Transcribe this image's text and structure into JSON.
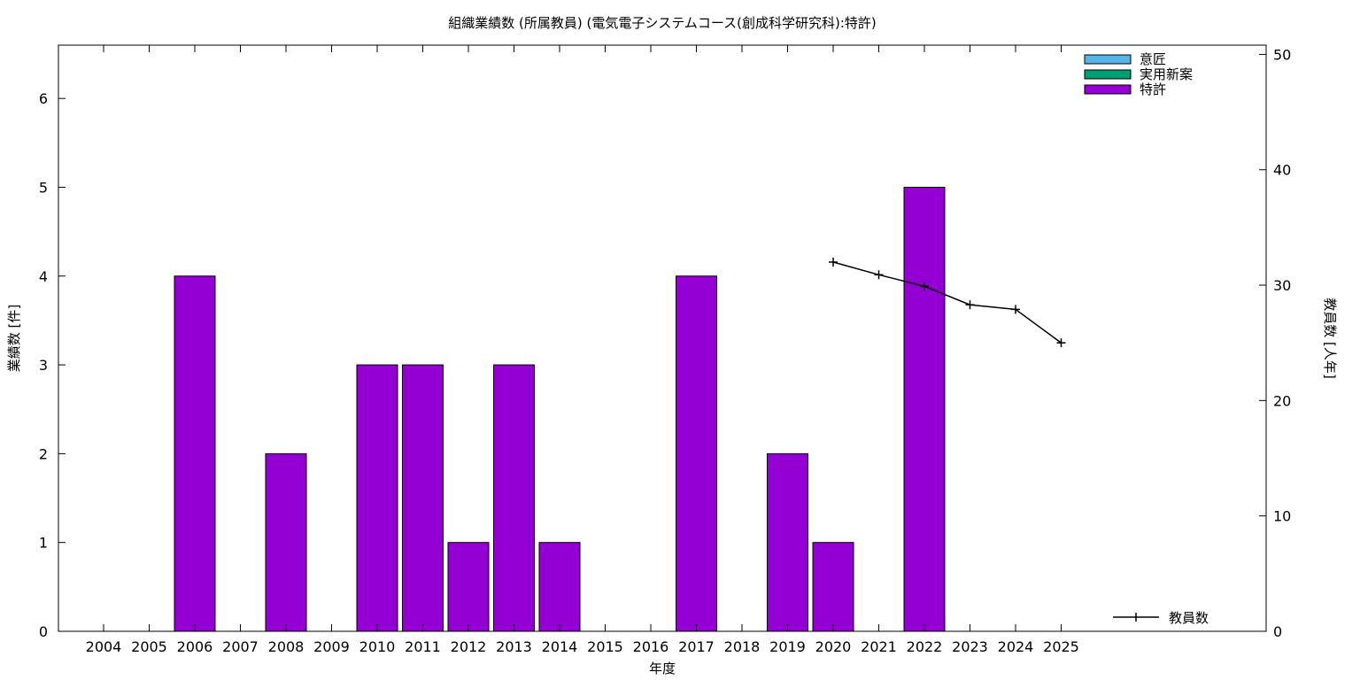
{
  "chart_data": {
    "type": "bar",
    "title": "組織業績数 (所属教員) (電気電子システムコース(創成科学研究科):特許)",
    "xlabel": "年度",
    "ylabel": "業績数 [件]",
    "y2label": "教員数 [人年]",
    "categories": [
      "2004",
      "2005",
      "2006",
      "2007",
      "2008",
      "2009",
      "2010",
      "2011",
      "2012",
      "2013",
      "2014",
      "2015",
      "2016",
      "2017",
      "2018",
      "2019",
      "2020",
      "2021",
      "2022",
      "2023",
      "2024",
      "2025"
    ],
    "ylim": [
      0,
      6.6
    ],
    "yticks": [
      0,
      1,
      2,
      3,
      4,
      5,
      6
    ],
    "y2lim": [
      0,
      50.8
    ],
    "y2ticks": [
      0,
      10,
      20,
      30,
      40,
      50
    ],
    "series": [
      {
        "name": "意匠",
        "color": "#56b4e9",
        "values": [
          0,
          0,
          0,
          0,
          0,
          0,
          0,
          0,
          0,
          0,
          0,
          0,
          0,
          0,
          0,
          0,
          0,
          0,
          0,
          0,
          0,
          0
        ]
      },
      {
        "name": "実用新案",
        "color": "#009e73",
        "values": [
          0,
          0,
          0,
          0,
          0,
          0,
          0,
          0,
          0,
          0,
          0,
          0,
          0,
          0,
          0,
          0,
          0,
          0,
          0,
          0,
          0,
          0
        ]
      },
      {
        "name": "特許",
        "color": "#9400d3",
        "values": [
          0,
          0,
          4,
          0,
          2,
          0,
          3,
          3,
          1,
          3,
          1,
          0,
          0,
          4,
          0,
          2,
          1,
          0,
          5,
          0,
          0,
          0
        ]
      }
    ],
    "line": {
      "name": "教員数",
      "color": "#000000",
      "axis": "y2",
      "x": [
        "2020",
        "2021",
        "2022",
        "2023",
        "2024",
        "2025"
      ],
      "values": [
        32.0,
        30.9,
        29.9,
        28.3,
        27.9,
        25.0
      ]
    },
    "legend_placement": "top-right",
    "line_legend_placement": "bottom-right",
    "grid": false
  }
}
